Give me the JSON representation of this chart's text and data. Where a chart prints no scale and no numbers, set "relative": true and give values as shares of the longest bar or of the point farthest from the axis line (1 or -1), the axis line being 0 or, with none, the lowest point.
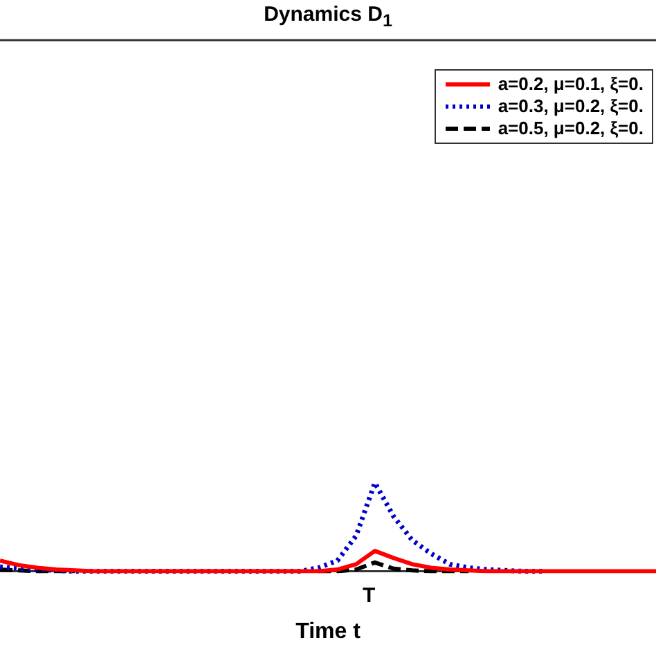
{
  "chart_data": {
    "type": "line",
    "title": "Dynamics D$_{1}$",
    "xlabel": "Time t",
    "relative": true,
    "legend": "top right",
    "marker": "none",
    "annotations": [
      "T"
    ],
    "categories": [
      null,
      null,
      null,
      null,
      null,
      null,
      null,
      null,
      null,
      null,
      null,
      null,
      null,
      null,
      null,
      null,
      null,
      null,
      null,
      null,
      null,
      null,
      null,
      null,
      null,
      null,
      null,
      null,
      null,
      null,
      null,
      null,
      null,
      null,
      null,
      null
    ],
    "series": [
      {
        "name": "a=0.2, μ=0.1, ξ=0.",
        "color": "#ff0000",
        "line_style": "solid",
        "values": [
          0.12,
          0.07,
          0.04,
          0.02,
          0.01,
          0,
          0,
          0,
          0,
          0,
          0,
          0,
          0,
          0,
          0,
          0,
          0,
          0,
          0.02,
          0.08,
          0.23,
          0.15,
          0.08,
          0.04,
          0.02,
          0.01,
          0,
          0,
          0,
          0,
          0,
          0,
          0,
          0,
          0,
          0
        ]
      },
      {
        "name": "a=0.3, μ=0.2, ξ=0.",
        "color": "#0000cc",
        "line_style": "dotted",
        "values": [
          0.05,
          0.035,
          0.02,
          0.01,
          0,
          0,
          0,
          0,
          0,
          0,
          0,
          0,
          0,
          0,
          0,
          0,
          0,
          0.04,
          0.12,
          0.4,
          1,
          0.62,
          0.35,
          0.2,
          0.08,
          0.04,
          0.02,
          0.01,
          0,
          0,
          null,
          null,
          null,
          null,
          null,
          null
        ]
      },
      {
        "name": "a=0.5, μ=0.2, ξ=0.",
        "color": "#000000",
        "line_style": "dashed",
        "values": [
          0.02,
          0.01,
          0,
          0,
          0,
          null,
          null,
          null,
          null,
          null,
          null,
          null,
          null,
          null,
          null,
          null,
          null,
          0,
          0,
          0.02,
          0.1,
          0.03,
          0.01,
          0,
          0,
          0,
          null,
          null,
          null,
          null,
          null,
          null,
          null,
          null,
          null,
          null
        ]
      }
    ]
  }
}
